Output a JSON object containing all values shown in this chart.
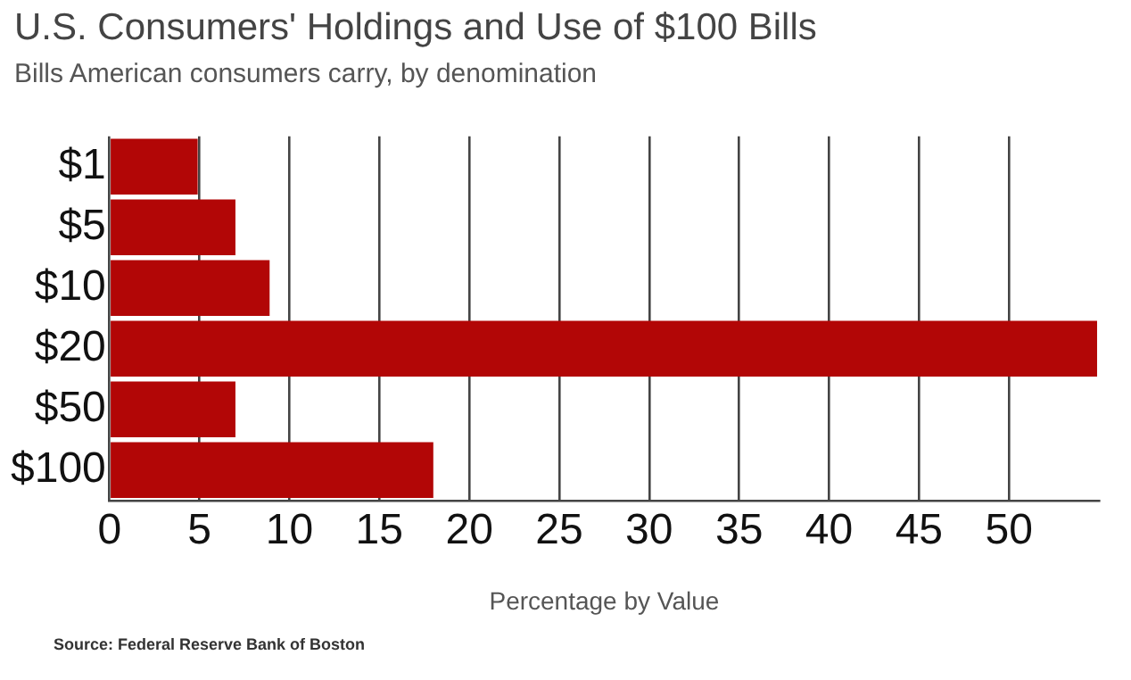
{
  "chart_data": {
    "type": "bar",
    "orientation": "horizontal",
    "title": "U.S. Consumers' Holdings and Use of $100 Bills",
    "subtitle": "Bills American consumers carry, by denomination",
    "xlabel": "Percentage by Value",
    "categories": [
      "$1",
      "$5",
      "$10",
      "$20",
      "$50",
      "$100"
    ],
    "values": [
      4.9,
      7.0,
      8.9,
      54.9,
      7.0,
      18.0
    ],
    "color": "#b20606",
    "xlim": [
      0,
      55
    ],
    "xticks": [
      0,
      5,
      10,
      15,
      20,
      25,
      30,
      35,
      40,
      45,
      50
    ],
    "grid": "x",
    "annotations": [
      "Source: Federal Reserve Bank of Boston"
    ]
  }
}
